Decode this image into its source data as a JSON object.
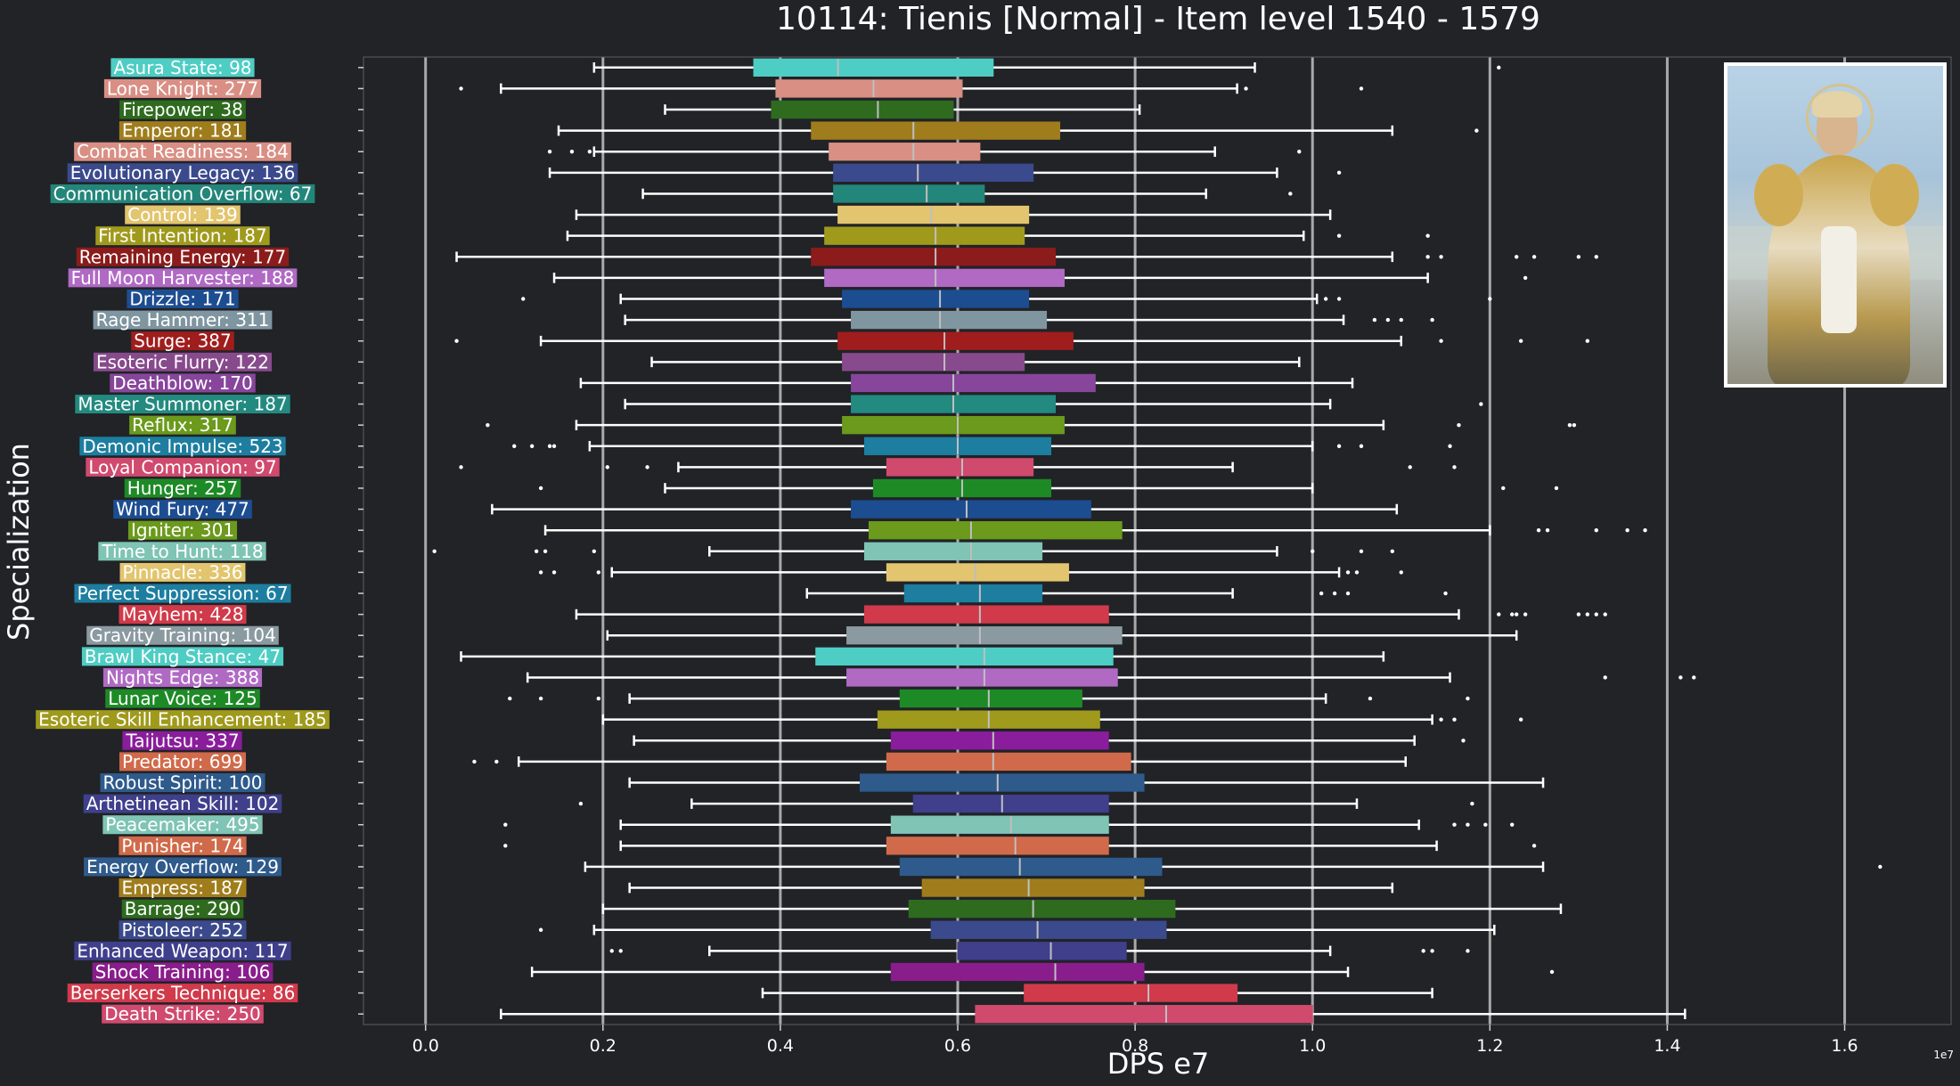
{
  "chart_data": {
    "type": "boxplot",
    "title": "10114: Tienis [Normal] - Item level 1540 - 1579",
    "xlabel": "DPS e7",
    "ylabel": "Specialization",
    "offset_label": "1e7",
    "xlim": [
      -0.07,
      1.72
    ],
    "xticks": [
      0.0,
      0.2,
      0.4,
      0.6,
      0.8,
      1.0,
      1.2,
      1.4,
      1.6
    ],
    "xtick_labels": [
      "0.0",
      "0.2",
      "0.4",
      "0.6",
      "0.8",
      "1.0",
      "1.2",
      "1.4",
      "1.6"
    ],
    "grid": "vertical",
    "series": [
      {
        "label": "Asura State: 98",
        "color": "#4ecdc4",
        "whislo": 0.19,
        "q1": 0.37,
        "med": 0.465,
        "q3": 0.64,
        "whishi": 0.935,
        "fliers": [
          1.21
        ]
      },
      {
        "label": "Lone Knight: 277",
        "color": "#d98f84",
        "whislo": 0.085,
        "q1": 0.395,
        "med": 0.505,
        "q3": 0.605,
        "whishi": 0.915,
        "fliers": [
          0.04,
          0.925,
          1.055
        ]
      },
      {
        "label": "Firepower: 38",
        "color": "#2e6b1e",
        "whislo": 0.27,
        "q1": 0.39,
        "med": 0.51,
        "q3": 0.595,
        "whishi": 0.805,
        "fliers": []
      },
      {
        "label": "Emperor: 181",
        "color": "#a07d1c",
        "whislo": 0.15,
        "q1": 0.435,
        "med": 0.55,
        "q3": 0.715,
        "whishi": 1.09,
        "fliers": [
          1.185
        ]
      },
      {
        "label": "Combat Readiness: 184",
        "color": "#d98f84",
        "whislo": 0.19,
        "q1": 0.455,
        "med": 0.55,
        "q3": 0.625,
        "whishi": 0.89,
        "fliers": [
          0.14,
          0.165,
          0.185,
          0.985
        ]
      },
      {
        "label": "Evolutionary Legacy: 136",
        "color": "#3b4a8c",
        "whislo": 0.14,
        "q1": 0.46,
        "med": 0.555,
        "q3": 0.685,
        "whishi": 0.96,
        "fliers": [
          1.03
        ]
      },
      {
        "label": "Communication Overflow: 67",
        "color": "#23867a",
        "whislo": 0.245,
        "q1": 0.46,
        "med": 0.565,
        "q3": 0.63,
        "whishi": 0.88,
        "fliers": [
          0.975
        ]
      },
      {
        "label": "Control: 139",
        "color": "#e2c56e",
        "whislo": 0.17,
        "q1": 0.465,
        "med": 0.57,
        "q3": 0.68,
        "whishi": 1.02,
        "fliers": []
      },
      {
        "label": "First Intention: 187",
        "color": "#a09a1c",
        "whislo": 0.16,
        "q1": 0.45,
        "med": 0.575,
        "q3": 0.675,
        "whishi": 0.99,
        "fliers": [
          1.03,
          1.13
        ]
      },
      {
        "label": "Remaining Energy: 177",
        "color": "#8c1b1b",
        "whislo": 0.035,
        "q1": 0.435,
        "med": 0.575,
        "q3": 0.71,
        "whishi": 1.09,
        "fliers": [
          1.13,
          1.145,
          1.23,
          1.25,
          1.3,
          1.32
        ]
      },
      {
        "label": "Full Moon Harvester: 188",
        "color": "#b06ac4",
        "whislo": 0.145,
        "q1": 0.45,
        "med": 0.575,
        "q3": 0.72,
        "whishi": 1.13,
        "fliers": [
          1.24
        ]
      },
      {
        "label": "Drizzle: 171",
        "color": "#1d4d91",
        "whislo": 0.22,
        "q1": 0.47,
        "med": 0.58,
        "q3": 0.68,
        "whishi": 1.005,
        "fliers": [
          0.11,
          1.015,
          1.03,
          1.2
        ]
      },
      {
        "label": "Rage Hammer: 311",
        "color": "#7f95a0",
        "whislo": 0.225,
        "q1": 0.48,
        "med": 0.58,
        "q3": 0.7,
        "whishi": 1.035,
        "fliers": [
          1.07,
          1.085,
          1.1,
          1.135
        ]
      },
      {
        "label": "Surge: 387",
        "color": "#a01d1d",
        "whislo": 0.13,
        "q1": 0.465,
        "med": 0.585,
        "q3": 0.73,
        "whishi": 1.1,
        "fliers": [
          0.035,
          1.145,
          1.235,
          1.31
        ]
      },
      {
        "label": "Esoteric Flurry: 122",
        "color": "#874a8c",
        "whislo": 0.255,
        "q1": 0.47,
        "med": 0.585,
        "q3": 0.675,
        "whishi": 0.985,
        "fliers": []
      },
      {
        "label": "Deathblow: 170",
        "color": "#87469b",
        "whislo": 0.175,
        "q1": 0.48,
        "med": 0.595,
        "q3": 0.755,
        "whishi": 1.045,
        "fliers": []
      },
      {
        "label": "Master Summoner: 187",
        "color": "#238a80",
        "whislo": 0.225,
        "q1": 0.48,
        "med": 0.595,
        "q3": 0.71,
        "whishi": 1.02,
        "fliers": [
          1.19
        ]
      },
      {
        "label": "Reflux: 317",
        "color": "#6b9a1c",
        "whislo": 0.17,
        "q1": 0.47,
        "med": 0.6,
        "q3": 0.72,
        "whishi": 1.08,
        "fliers": [
          0.07,
          1.165,
          1.29,
          1.295
        ]
      },
      {
        "label": "Demonic Impulse: 523",
        "color": "#1d7ea0",
        "whislo": 0.185,
        "q1": 0.495,
        "med": 0.6,
        "q3": 0.705,
        "whishi": 1.0,
        "fliers": [
          0.1,
          0.12,
          0.14,
          0.145,
          1.03,
          1.055,
          1.155
        ]
      },
      {
        "label": "Loyal Companion: 97",
        "color": "#d04a6e",
        "whislo": 0.285,
        "q1": 0.52,
        "med": 0.605,
        "q3": 0.685,
        "whishi": 0.91,
        "fliers": [
          0.04,
          0.205,
          0.25,
          1.11,
          1.16
        ]
      },
      {
        "label": "Hunger: 257",
        "color": "#1d8a26",
        "whislo": 0.27,
        "q1": 0.505,
        "med": 0.605,
        "q3": 0.705,
        "whishi": 1.0,
        "fliers": [
          0.13,
          1.215,
          1.275
        ]
      },
      {
        "label": "Wind Fury: 477",
        "color": "#1d4d91",
        "whislo": 0.075,
        "q1": 0.48,
        "med": 0.61,
        "q3": 0.75,
        "whishi": 1.095,
        "fliers": []
      },
      {
        "label": "Igniter: 301",
        "color": "#6b9a1c",
        "whislo": 0.135,
        "q1": 0.5,
        "med": 0.615,
        "q3": 0.785,
        "whishi": 1.2,
        "fliers": [
          1.255,
          1.265,
          1.32,
          1.355,
          1.375
        ]
      },
      {
        "label": "Time to Hunt: 118",
        "color": "#7fc4b4",
        "whislo": 0.32,
        "q1": 0.495,
        "med": 0.615,
        "q3": 0.695,
        "whishi": 0.96,
        "fliers": [
          0.01,
          0.125,
          0.135,
          0.19,
          1.0,
          1.055,
          1.09
        ]
      },
      {
        "label": "Pinnacle: 336",
        "color": "#e2c56e",
        "whislo": 0.21,
        "q1": 0.52,
        "med": 0.62,
        "q3": 0.725,
        "whishi": 1.03,
        "fliers": [
          0.13,
          0.145,
          0.195,
          1.04,
          1.05,
          1.1
        ]
      },
      {
        "label": "Perfect Suppression: 67",
        "color": "#1d7ea0",
        "whislo": 0.43,
        "q1": 0.54,
        "med": 0.625,
        "q3": 0.695,
        "whishi": 0.91,
        "fliers": [
          1.01,
          1.025,
          1.04,
          1.15
        ]
      },
      {
        "label": "Mayhem: 428",
        "color": "#d03a4a",
        "whislo": 0.17,
        "q1": 0.495,
        "med": 0.625,
        "q3": 0.77,
        "whishi": 1.165,
        "fliers": [
          1.21,
          1.225,
          1.23,
          1.24,
          1.3,
          1.31,
          1.32,
          1.33
        ]
      },
      {
        "label": "Gravity Training: 104",
        "color": "#8a9aa0",
        "whislo": 0.205,
        "q1": 0.475,
        "med": 0.625,
        "q3": 0.785,
        "whishi": 1.23,
        "fliers": []
      },
      {
        "label": "Brawl King Stance: 47",
        "color": "#4ecdc4",
        "whislo": 0.04,
        "q1": 0.44,
        "med": 0.63,
        "q3": 0.775,
        "whishi": 1.08,
        "fliers": []
      },
      {
        "label": "Nights Edge: 388",
        "color": "#b06ac4",
        "whislo": 0.115,
        "q1": 0.475,
        "med": 0.63,
        "q3": 0.78,
        "whishi": 1.155,
        "fliers": [
          1.33,
          1.415,
          1.43
        ]
      },
      {
        "label": "Lunar Voice: 125",
        "color": "#1d8a26",
        "whislo": 0.23,
        "q1": 0.535,
        "med": 0.635,
        "q3": 0.74,
        "whishi": 1.015,
        "fliers": [
          0.095,
          0.13,
          0.195,
          1.065,
          1.175
        ]
      },
      {
        "label": "Esoteric Skill Enhancement: 185",
        "color": "#a09a1c",
        "whislo": 0.2,
        "q1": 0.51,
        "med": 0.635,
        "q3": 0.76,
        "whishi": 1.135,
        "fliers": [
          1.145,
          1.16,
          1.235
        ]
      },
      {
        "label": "Taijutsu: 337",
        "color": "#8a1d9b",
        "whislo": 0.235,
        "q1": 0.525,
        "med": 0.64,
        "q3": 0.77,
        "whishi": 1.115,
        "fliers": [
          1.17
        ]
      },
      {
        "label": "Predator: 699",
        "color": "#d06a4a",
        "whislo": 0.105,
        "q1": 0.52,
        "med": 0.64,
        "q3": 0.795,
        "whishi": 1.105,
        "fliers": [
          0.055,
          0.08
        ]
      },
      {
        "label": "Robust Spirit: 100",
        "color": "#2f5a8c",
        "whislo": 0.23,
        "q1": 0.49,
        "med": 0.645,
        "q3": 0.81,
        "whishi": 1.26,
        "fliers": []
      },
      {
        "label": "Arthetinean Skill: 102",
        "color": "#3f3f8c",
        "whislo": 0.3,
        "q1": 0.55,
        "med": 0.65,
        "q3": 0.77,
        "whishi": 1.05,
        "fliers": [
          0.175,
          1.18
        ]
      },
      {
        "label": "Peacemaker: 495",
        "color": "#7fc4b4",
        "whislo": 0.22,
        "q1": 0.525,
        "med": 0.66,
        "q3": 0.77,
        "whishi": 1.12,
        "fliers": [
          0.09,
          1.16,
          1.175,
          1.195,
          1.225
        ]
      },
      {
        "label": "Punisher: 174",
        "color": "#d06a4a",
        "whislo": 0.22,
        "q1": 0.52,
        "med": 0.665,
        "q3": 0.77,
        "whishi": 1.14,
        "fliers": [
          0.09,
          1.25
        ]
      },
      {
        "label": "Energy Overflow: 129",
        "color": "#2f5a8c",
        "whislo": 0.18,
        "q1": 0.535,
        "med": 0.67,
        "q3": 0.83,
        "whishi": 1.26,
        "fliers": [
          1.64
        ]
      },
      {
        "label": "Empress: 187",
        "color": "#a07d1c",
        "whislo": 0.23,
        "q1": 0.56,
        "med": 0.68,
        "q3": 0.81,
        "whishi": 1.09,
        "fliers": []
      },
      {
        "label": "Barrage: 290",
        "color": "#2e6b1e",
        "whislo": 0.2,
        "q1": 0.545,
        "med": 0.685,
        "q3": 0.845,
        "whishi": 1.28,
        "fliers": []
      },
      {
        "label": "Pistoleer: 252",
        "color": "#3b4a8c",
        "whislo": 0.19,
        "q1": 0.57,
        "med": 0.69,
        "q3": 0.835,
        "whishi": 1.205,
        "fliers": [
          0.13
        ]
      },
      {
        "label": "Enhanced Weapon: 117",
        "color": "#3f3f8c",
        "whislo": 0.32,
        "q1": 0.6,
        "med": 0.705,
        "q3": 0.79,
        "whishi": 1.02,
        "fliers": [
          0.21,
          0.22,
          1.125,
          1.135,
          1.175
        ]
      },
      {
        "label": "Shock Training: 106",
        "color": "#8a1d8c",
        "whislo": 0.12,
        "q1": 0.525,
        "med": 0.71,
        "q3": 0.81,
        "whishi": 1.04,
        "fliers": [
          1.27
        ]
      },
      {
        "label": "Berserkers Technique: 86",
        "color": "#d03a4a",
        "whislo": 0.38,
        "q1": 0.675,
        "med": 0.815,
        "q3": 0.915,
        "whishi": 1.135,
        "fliers": []
      },
      {
        "label": "Death Strike: 250",
        "color": "#d04a6e",
        "whislo": 0.085,
        "q1": 0.62,
        "med": 0.835,
        "q3": 1.0,
        "whishi": 1.42,
        "fliers": []
      }
    ]
  },
  "portrait": {
    "icon": "character-portrait-icon"
  }
}
